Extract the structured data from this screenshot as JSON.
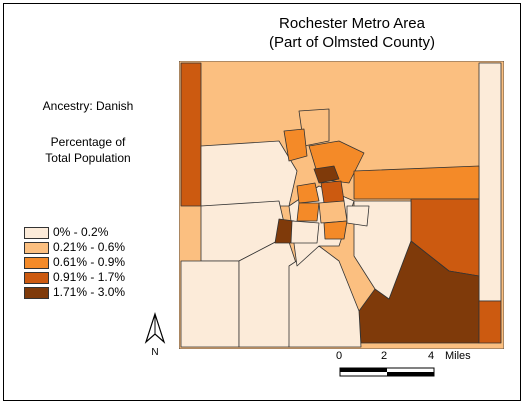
{
  "title": {
    "line1": "Rochester Metro Area",
    "line2": "(Part of Olmsted County)"
  },
  "side_text": {
    "ancestry": "Ancestry: Danish",
    "measure_line1": "Percentage of",
    "measure_line2": "Total Population"
  },
  "legend": {
    "items": [
      {
        "label": "0% - 0.2%",
        "color": "#fcebd9"
      },
      {
        "label": "0.21% - 0.6%",
        "color": "#fbbf80"
      },
      {
        "label": "0.61% - 0.9%",
        "color": "#f48a28"
      },
      {
        "label": "0.91% - 1.7%",
        "color": "#cc5a10"
      },
      {
        "label": "1.71% - 3.0%",
        "color": "#7f3a0a"
      }
    ]
  },
  "north_arrow": {
    "label": "N",
    "icon": "north-arrow-icon"
  },
  "scale_bar": {
    "tick_0": "0",
    "tick_2": "2",
    "tick_4": "4",
    "unit": "Miles"
  }
}
